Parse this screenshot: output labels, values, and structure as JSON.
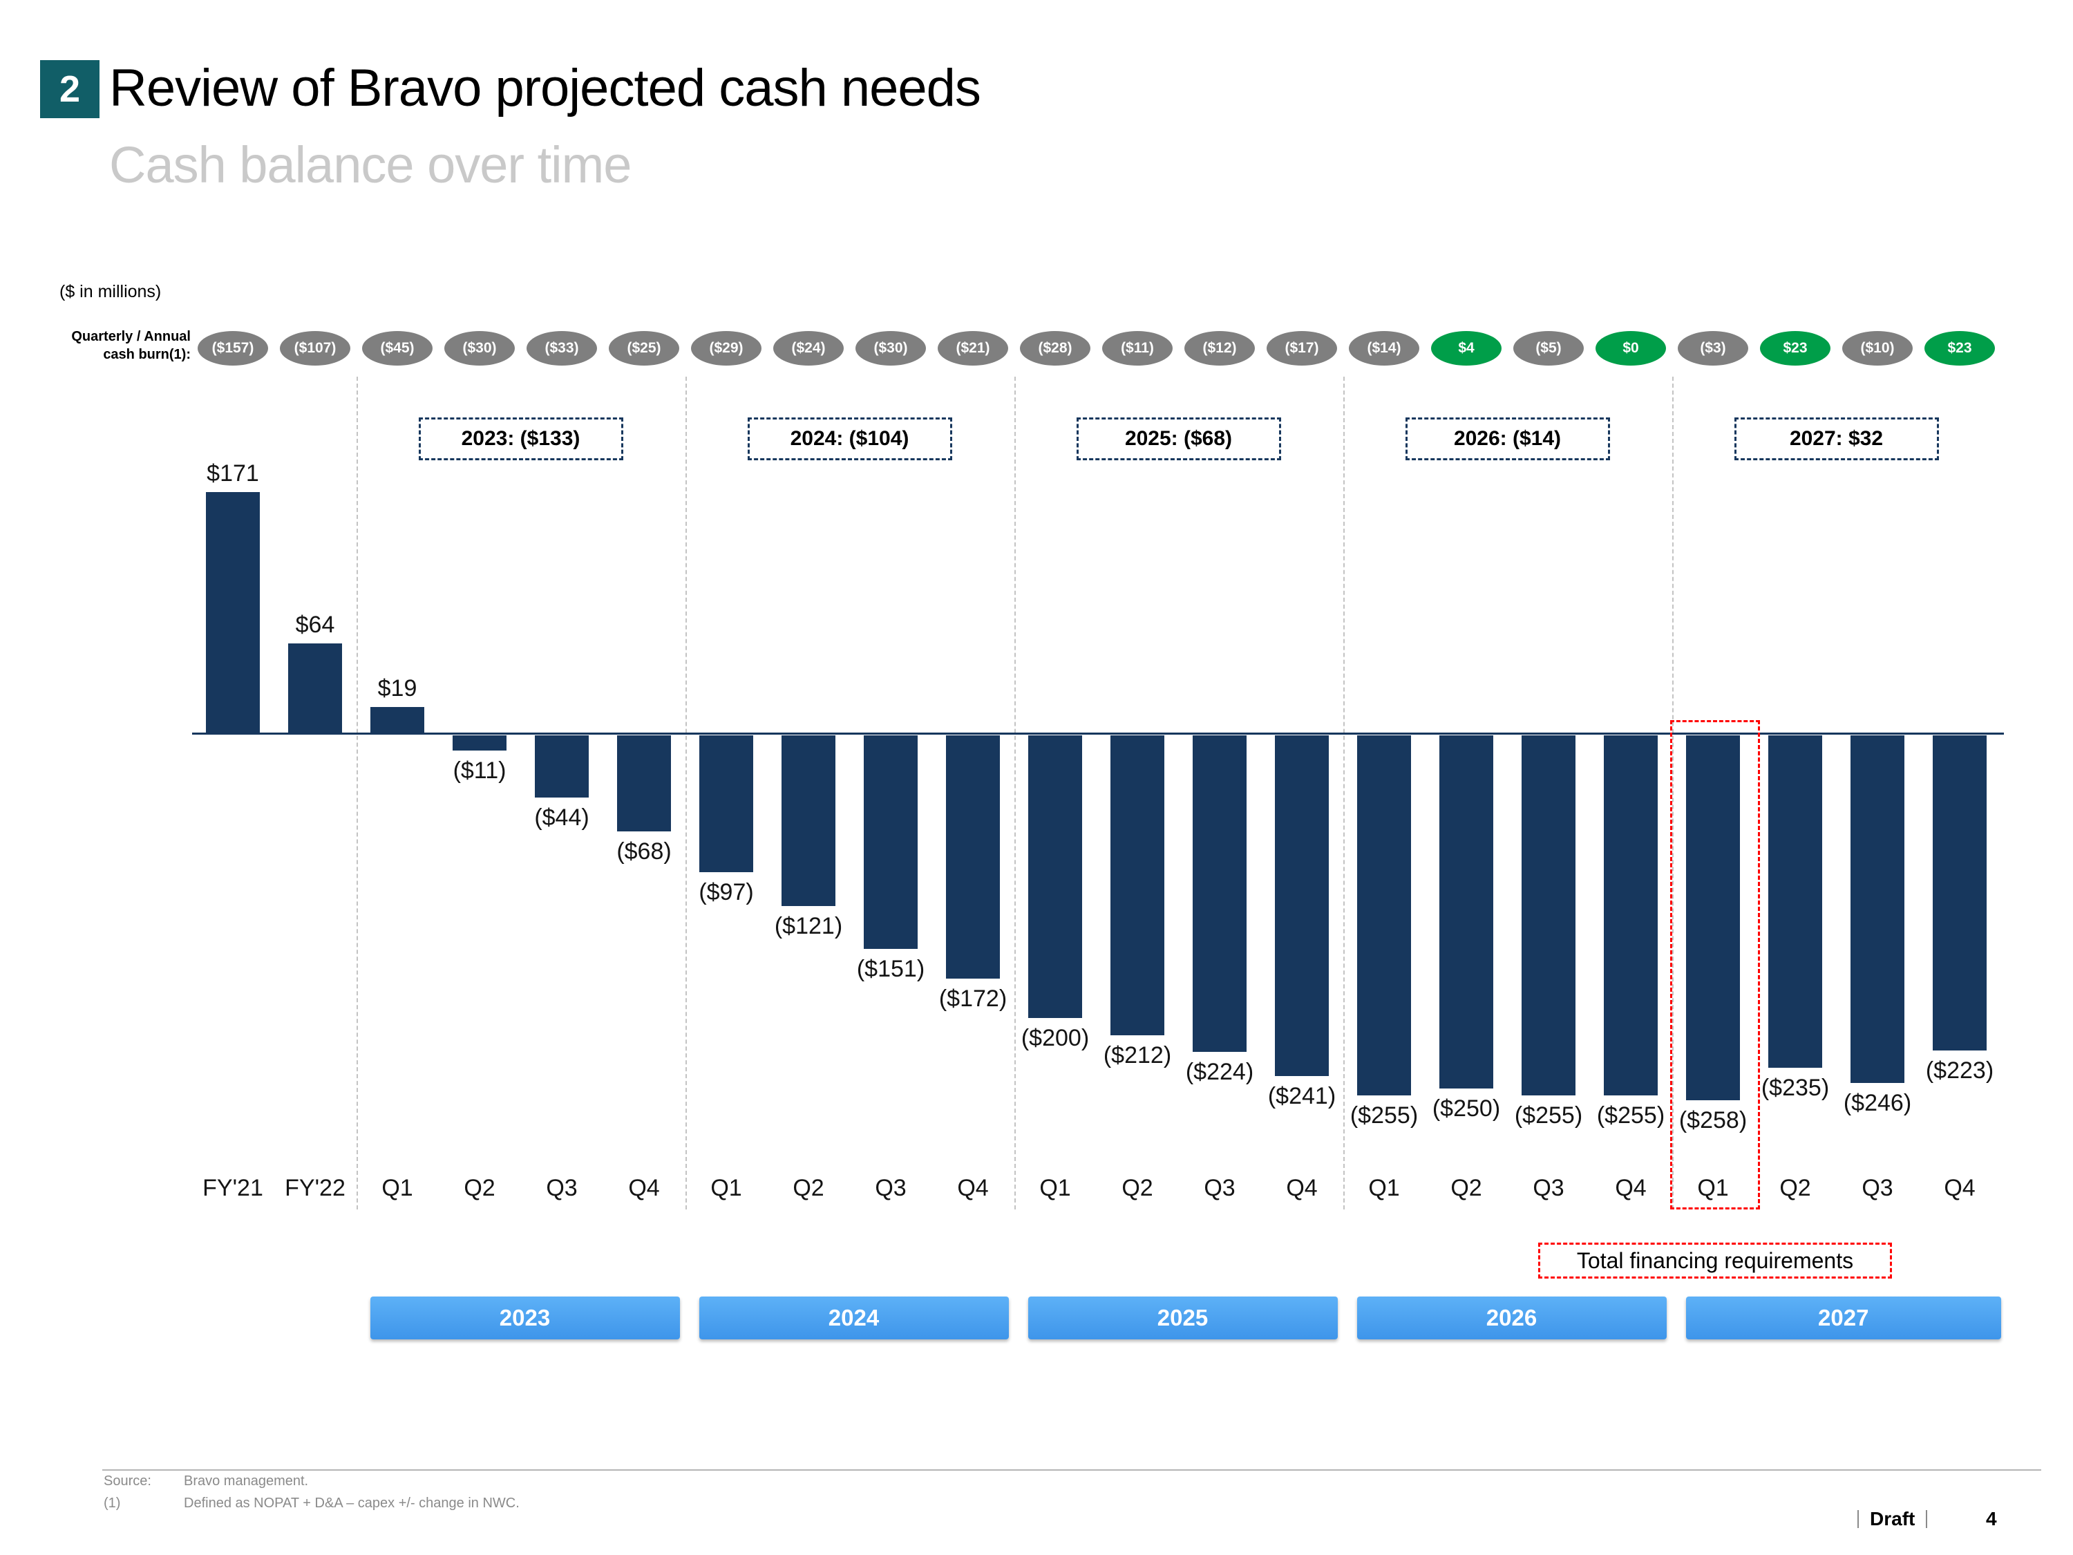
{
  "header": {
    "badge": "2",
    "title": "Review of Bravo projected cash needs",
    "subtitle": "Cash balance over time"
  },
  "chart": {
    "units_label": "($ in millions)",
    "burn_label_line1": "Quarterly / Annual",
    "burn_label_line2": "cash burn(1):",
    "burn_badges": [
      {
        "label": "($157)",
        "positive": false
      },
      {
        "label": "($107)",
        "positive": false
      },
      {
        "label": "($45)",
        "positive": false
      },
      {
        "label": "($30)",
        "positive": false
      },
      {
        "label": "($33)",
        "positive": false
      },
      {
        "label": "($25)",
        "positive": false
      },
      {
        "label": "($29)",
        "positive": false
      },
      {
        "label": "($24)",
        "positive": false
      },
      {
        "label": "($30)",
        "positive": false
      },
      {
        "label": "($21)",
        "positive": false
      },
      {
        "label": "($28)",
        "positive": false
      },
      {
        "label": "($11)",
        "positive": false
      },
      {
        "label": "($12)",
        "positive": false
      },
      {
        "label": "($17)",
        "positive": false
      },
      {
        "label": "($14)",
        "positive": false
      },
      {
        "label": "$4",
        "positive": true
      },
      {
        "label": "($5)",
        "positive": false
      },
      {
        "label": "$0",
        "positive": true
      },
      {
        "label": "($3)",
        "positive": false
      },
      {
        "label": "$23",
        "positive": true
      },
      {
        "label": "($10)",
        "positive": false
      },
      {
        "label": "$23",
        "positive": true
      }
    ],
    "annual_totals": [
      "2023: ($133)",
      "2024: ($104)",
      "2025: ($68)",
      "2026: ($14)",
      "2027: $32"
    ],
    "year_bands": [
      "2023",
      "2024",
      "2025",
      "2026",
      "2027"
    ],
    "financing_note": "Total financing requirements"
  },
  "chart_data": {
    "type": "bar",
    "title": "Cash balance over time",
    "units": "$ in millions",
    "categories": [
      "FY'21",
      "FY'22",
      "Q1",
      "Q2",
      "Q3",
      "Q4",
      "Q1",
      "Q2",
      "Q3",
      "Q4",
      "Q1",
      "Q2",
      "Q3",
      "Q4",
      "Q1",
      "Q2",
      "Q3",
      "Q4",
      "Q1",
      "Q2",
      "Q3",
      "Q4"
    ],
    "year_of_category": [
      "FY'21",
      "FY'22",
      "2023",
      "2023",
      "2023",
      "2023",
      "2024",
      "2024",
      "2024",
      "2024",
      "2025",
      "2025",
      "2025",
      "2025",
      "2026",
      "2026",
      "2026",
      "2026",
      "2027",
      "2027",
      "2027",
      "2027"
    ],
    "values": [
      171,
      64,
      19,
      -11,
      -44,
      -68,
      -97,
      -121,
      -151,
      -172,
      -200,
      -212,
      -224,
      -241,
      -255,
      -250,
      -255,
      -255,
      -258,
      -235,
      -246,
      -223
    ],
    "labels": [
      "$171",
      "$64",
      "$19",
      "($11)",
      "($44)",
      "($68)",
      "($97)",
      "($121)",
      "($151)",
      "($172)",
      "($200)",
      "($212)",
      "($224)",
      "($241)",
      "($255)",
      "($250)",
      "($255)",
      "($255)",
      "($258)",
      "($235)",
      "($246)",
      "($223)"
    ],
    "cash_burn_values": [
      -157,
      -107,
      -45,
      -30,
      -33,
      -25,
      -29,
      -24,
      -30,
      -21,
      -28,
      -11,
      -12,
      -17,
      -14,
      4,
      -5,
      0,
      -3,
      23,
      -10,
      23
    ],
    "annual_net_burn": {
      "2023": -133,
      "2024": -104,
      "2025": -68,
      "2026": -14,
      "2027": 32
    },
    "highlight_index": 18,
    "ylim": [
      -300,
      200
    ],
    "grid": false,
    "legend": false,
    "bar_color": "#17375D"
  },
  "colors": {
    "bar_navy": "#17375D",
    "badge_gray": "#7F7F7F",
    "badge_green": "#009E49",
    "band_blue_top": "#5DB1F7",
    "band_blue_bottom": "#3E95EA",
    "accent_teal": "#115E67",
    "highlight_red": "#FF0000",
    "separator_gray": "#C3C3C3"
  },
  "footer": {
    "source_label": "Source:",
    "source_value": "Bravo management.",
    "note_label": "(1)",
    "note_value": "Defined as NOPAT + D&A – capex +/- change in NWC.",
    "draft_label": "Draft",
    "page_number": "4"
  }
}
